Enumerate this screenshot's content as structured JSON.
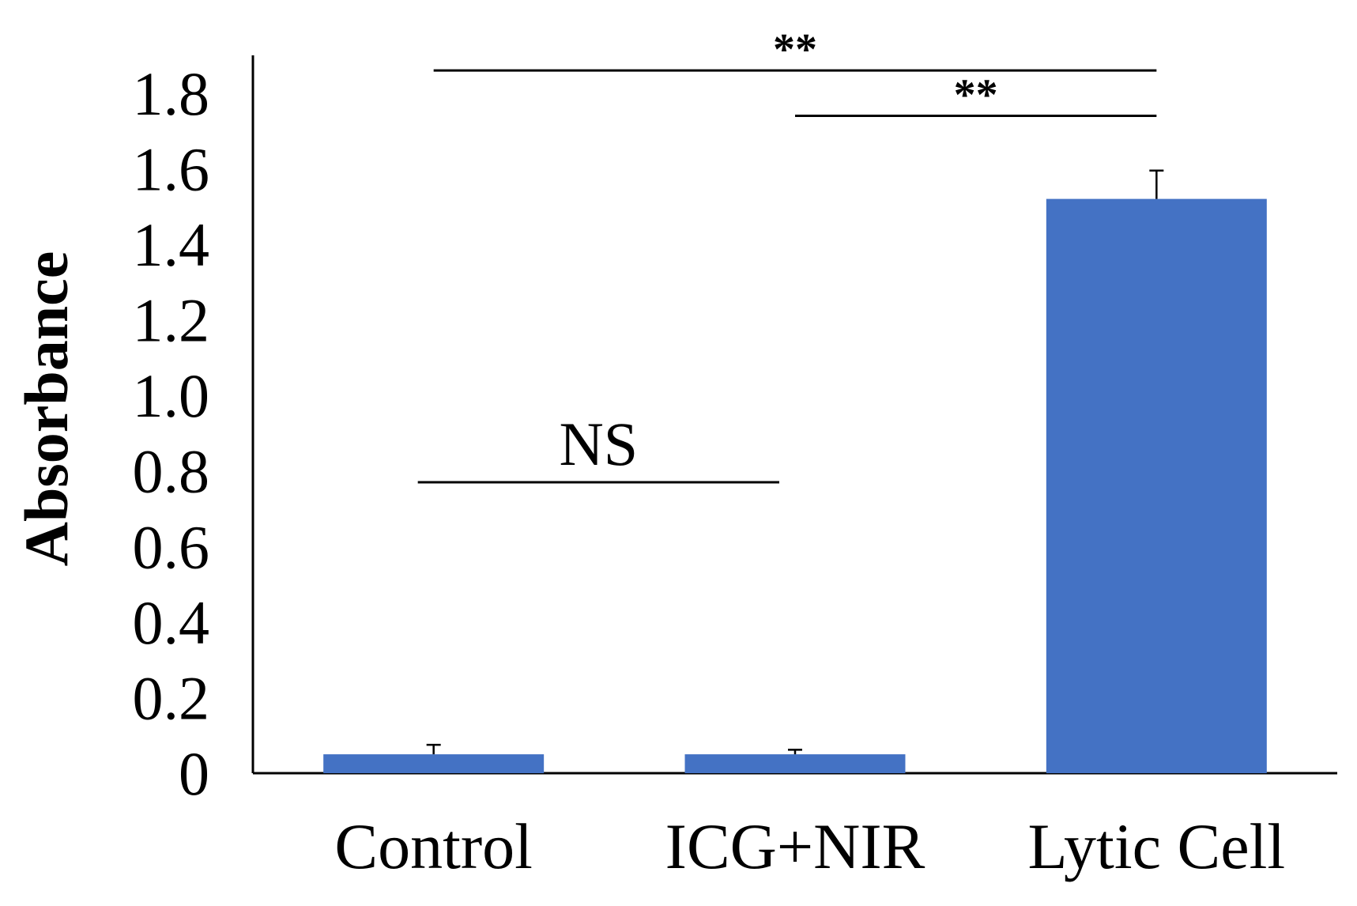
{
  "chart_data": {
    "type": "bar",
    "title": "",
    "xlabel": "",
    "ylabel": "Absorbance",
    "categories": [
      "Control",
      "ICG+NIR",
      "Lytic Cell"
    ],
    "values": [
      0.05,
      0.05,
      1.52
    ],
    "errors": [
      0.025,
      0.012,
      0.075
    ],
    "ylim": [
      0,
      1.9
    ],
    "yticks": [
      "0",
      "0.2",
      "0.4",
      "0.6",
      "0.8",
      "1.0",
      "1.2",
      "1.4",
      "1.6",
      "1.8"
    ],
    "bar_color": "#4472C4",
    "grid": false,
    "legend": "none",
    "significance": [
      {
        "from": 0,
        "to": 2,
        "label": "**",
        "y": 1.86
      },
      {
        "from": 1,
        "to": 2,
        "label": "**",
        "y": 1.74
      },
      {
        "from": 0,
        "to": 1,
        "label": "NS",
        "y": 0.77
      }
    ]
  }
}
